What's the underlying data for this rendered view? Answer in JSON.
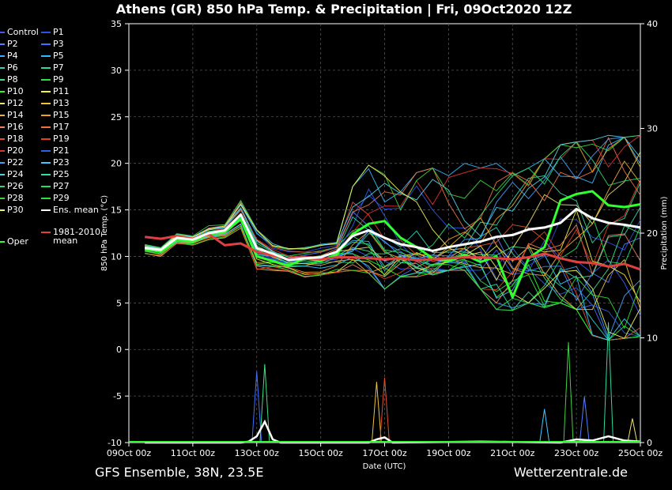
{
  "title": "Athens  (GR)  850 hPa Temp. & Precipitation | Fri, 09Oct2020 12Z",
  "footer_left": "GFS Ensemble, 38N, 23.5E",
  "footer_right": "Wetterzentrale.de",
  "legend": [
    {
      "label": "Control",
      "color": "#3a5bff"
    },
    {
      "label": "P1",
      "color": "#3050e0"
    },
    {
      "label": "P2",
      "color": "#5080ff"
    },
    {
      "label": "P3",
      "color": "#4070ff"
    },
    {
      "label": "P4",
      "color": "#40a8ff"
    },
    {
      "label": "P5",
      "color": "#30b8ff"
    },
    {
      "label": "P6",
      "color": "#30d0c0"
    },
    {
      "label": "P7",
      "color": "#30d8a0"
    },
    {
      "label": "P8",
      "color": "#40e080"
    },
    {
      "label": "P9",
      "color": "#30e040"
    },
    {
      "label": "P10",
      "color": "#20ff20"
    },
    {
      "label": "P11",
      "color": "#f0f040"
    },
    {
      "label": "P12",
      "color": "#f0e070"
    },
    {
      "label": "P13",
      "color": "#f0c040"
    },
    {
      "label": "P14",
      "color": "#f0b030"
    },
    {
      "label": "P15",
      "color": "#f0a020"
    },
    {
      "label": "P16",
      "color": "#f08060"
    },
    {
      "label": "P17",
      "color": "#f07040"
    },
    {
      "label": "P18",
      "color": "#e05030"
    },
    {
      "label": "P19",
      "color": "#e04020"
    },
    {
      "label": "P20",
      "color": "#e03030"
    },
    {
      "label": "P21",
      "color": "#3060e0"
    },
    {
      "label": "P22",
      "color": "#40a0ff"
    },
    {
      "label": "P23",
      "color": "#40c8ff"
    },
    {
      "label": "P24",
      "color": "#50d0e0"
    },
    {
      "label": "P25",
      "color": "#30e0a0"
    },
    {
      "label": "P26",
      "color": "#30d870"
    },
    {
      "label": "P27",
      "color": "#20e060"
    },
    {
      "label": "P28",
      "color": "#40d040"
    },
    {
      "label": "P29",
      "color": "#30e030"
    },
    {
      "label": "P30",
      "color": "#f0f060"
    },
    {
      "label": "Ens. mean",
      "color": "#ffffff"
    }
  ],
  "legend_oper": {
    "label": "Oper",
    "color": "#30ff30"
  },
  "legend_clim": {
    "label_line1": "1981-2010",
    "label_line2": "mean",
    "color": "#e04040"
  },
  "chart_data": {
    "type": "line",
    "y_left_label": "850 hPa Temp. (°C)",
    "y_right_label": "Precipitation (mm)",
    "x_label": "Date (UTC)",
    "ylim_left": [
      -10,
      35
    ],
    "ylim_right": [
      0,
      40
    ],
    "y_left_ticks": [
      -10,
      -5,
      0,
      5,
      10,
      15,
      20,
      25,
      30,
      35
    ],
    "y_right_ticks": [
      0,
      10,
      20,
      30,
      40
    ],
    "x_ticks": [
      "09Oct 00z",
      "11Oct 00z",
      "13Oct 00z",
      "15Oct 00z",
      "17Oct 00z",
      "19Oct 00z",
      "21Oct 00z",
      "23Oct 00z",
      "25Oct 00z"
    ],
    "x_start": "09Oct 00z",
    "x_end": "25Oct 00z",
    "grid": true,
    "ens_mean": {
      "name": "Ens. mean",
      "x": [
        "09Oct 12z",
        "10Oct 00z",
        "10Oct 12z",
        "11Oct 00z",
        "11Oct 12z",
        "12Oct 00z",
        "12Oct 12z",
        "13Oct 00z",
        "13Oct 12z",
        "14Oct 00z",
        "14Oct 12z",
        "15Oct 00z",
        "15Oct 12z",
        "16Oct 00z",
        "16Oct 12z",
        "17Oct 00z",
        "17Oct 12z",
        "18Oct 00z",
        "18Oct 12z",
        "19Oct 00z",
        "19Oct 12z",
        "20Oct 00z",
        "20Oct 12z",
        "21Oct 00z",
        "21Oct 12z",
        "22Oct 00z",
        "22Oct 12z",
        "23Oct 00z",
        "23Oct 12z",
        "24Oct 00z",
        "24Oct 12z",
        "25Oct 00z"
      ],
      "values": [
        10.9,
        10.7,
        12.0,
        11.8,
        12.5,
        12.8,
        14.5,
        10.9,
        10.3,
        9.6,
        9.8,
        9.9,
        10.5,
        12.2,
        12.8,
        12.0,
        11.3,
        11.0,
        10.6,
        11.0,
        11.3,
        11.6,
        12.1,
        12.3,
        12.9,
        13.1,
        13.6,
        15.1,
        14.1,
        13.6,
        13.4,
        13.1
      ]
    },
    "climatology": {
      "name": "1981-2010 mean",
      "x": [
        "09Oct 12z",
        "10Oct 00z",
        "10Oct 12z",
        "11Oct 00z",
        "11Oct 12z",
        "12Oct 00z",
        "12Oct 12z",
        "13Oct 00z",
        "13Oct 12z",
        "14Oct 00z",
        "14Oct 12z",
        "15Oct 00z",
        "15Oct 12z",
        "16Oct 00z",
        "16Oct 12z",
        "17Oct 00z",
        "17Oct 12z",
        "18Oct 00z",
        "18Oct 12z",
        "19Oct 00z",
        "19Oct 12z",
        "20Oct 00z",
        "20Oct 12z",
        "21Oct 00z",
        "21Oct 12z",
        "22Oct 00z",
        "22Oct 12z",
        "23Oct 00z",
        "23Oct 12z",
        "24Oct 00z",
        "24Oct 12z",
        "25Oct 00z"
      ],
      "values": [
        12.1,
        11.9,
        12.2,
        11.9,
        12.4,
        11.2,
        11.4,
        10.5,
        10.1,
        9.7,
        9.8,
        9.7,
        9.9,
        9.9,
        9.8,
        9.7,
        9.8,
        9.6,
        9.7,
        9.8,
        9.9,
        9.9,
        9.8,
        9.7,
        9.9,
        10.3,
        9.8,
        9.4,
        9.3,
        8.9,
        9.2,
        8.6
      ]
    },
    "oper": {
      "name": "Oper",
      "x": [
        "09Oct 12z",
        "10Oct 00z",
        "10Oct 12z",
        "11Oct 00z",
        "11Oct 12z",
        "12Oct 00z",
        "12Oct 12z",
        "13Oct 00z",
        "13Oct 12z",
        "14Oct 00z",
        "14Oct 12z",
        "15Oct 00z",
        "15Oct 12z",
        "16Oct 00z",
        "16Oct 12z",
        "17Oct 00z",
        "17Oct 12z",
        "18Oct 00z",
        "18Oct 12z",
        "19Oct 00z",
        "19Oct 12z",
        "20Oct 00z",
        "20Oct 12z",
        "21Oct 00z",
        "21Oct 12z",
        "22Oct 00z",
        "22Oct 12z",
        "23Oct 00z",
        "23Oct 12z",
        "24Oct 00z",
        "24Oct 12z",
        "25Oct 00z"
      ],
      "values": [
        10.8,
        10.5,
        11.8,
        11.6,
        12.4,
        12.6,
        14.0,
        10.0,
        9.5,
        9.0,
        9.8,
        9.5,
        10.2,
        12.4,
        13.5,
        13.8,
        12.0,
        11.0,
        9.8,
        9.5,
        10.2,
        9.4,
        10.0,
        5.6,
        9.8,
        11.0,
        16.0,
        16.7,
        17.0,
        15.5,
        15.3,
        15.6
      ]
    },
    "members_min_max": {
      "note_x": [
        "09Oct 12z",
        "10Oct 00z",
        "10Oct 12z",
        "11Oct 00z",
        "11Oct 12z",
        "12Oct 00z",
        "12Oct 12z",
        "13Oct 00z",
        "13Oct 12z",
        "14Oct 00z",
        "14Oct 12z",
        "15Oct 00z",
        "15Oct 12z",
        "16Oct 00z",
        "16Oct 12z",
        "17Oct 00z",
        "17Oct 12z",
        "18Oct 00z",
        "18Oct 12z",
        "19Oct 00z",
        "19Oct 12z",
        "20Oct 00z",
        "20Oct 12z",
        "21Oct 00z",
        "21Oct 12z",
        "22Oct 00z",
        "22Oct 12z",
        "23Oct 00z",
        "23Oct 12z",
        "24Oct 00z",
        "24Oct 12z",
        "25Oct 00z"
      ],
      "min": [
        10.3,
        10.0,
        11.3,
        11.2,
        11.8,
        12.0,
        13.0,
        8.5,
        8.5,
        8.4,
        7.8,
        8.0,
        8.3,
        8.5,
        8.2,
        6.5,
        7.8,
        7.8,
        8.0,
        8.5,
        8.5,
        6.5,
        4.3,
        4.2,
        5.0,
        4.5,
        5.0,
        4.3,
        1.5,
        1.0,
        1.2,
        1.4
      ],
      "max": [
        11.3,
        11.0,
        12.5,
        12.2,
        13.3,
        13.5,
        16.5,
        13.5,
        11.5,
        11.0,
        11.0,
        11.3,
        11.5,
        17.5,
        19.8,
        18.8,
        17.0,
        19.0,
        19.5,
        19.5,
        20.0,
        19.5,
        20.0,
        19.0,
        19.5,
        20.5,
        22.0,
        22.3,
        22.5,
        23.0,
        22.8,
        23.0
      ]
    },
    "precip_mean": {
      "name": "Ens. mean precipitation",
      "x": [
        "09Oct 12z",
        "12Oct 12z",
        "12Oct 18z",
        "13Oct 00z",
        "13Oct 06z",
        "13Oct 12z",
        "13Oct 18z",
        "16Oct 12z",
        "16Oct 18z",
        "17Oct 00z",
        "17Oct 06z",
        "20Oct 00z",
        "22Oct 12z",
        "23Oct 00z",
        "23Oct 12z",
        "24Oct 00z",
        "24Oct 12z",
        "25Oct 00z"
      ],
      "values": [
        0,
        0,
        0.1,
        0.6,
        2.0,
        0.3,
        0,
        0,
        0.3,
        0.5,
        0,
        0.1,
        0,
        0.3,
        0.2,
        0.6,
        0.2,
        0.1
      ]
    },
    "precip_peaks": {
      "x": [
        "13Oct 00z",
        "13Oct 06z",
        "16Oct 18z",
        "17Oct 00z",
        "22Oct 00z",
        "22Oct 18z",
        "23Oct 06z",
        "24Oct 00z",
        "24Oct 18z"
      ],
      "values": [
        6.8,
        7.5,
        5.8,
        6.2,
        3.2,
        9.6,
        4.4,
        11.5,
        2.3
      ]
    }
  }
}
